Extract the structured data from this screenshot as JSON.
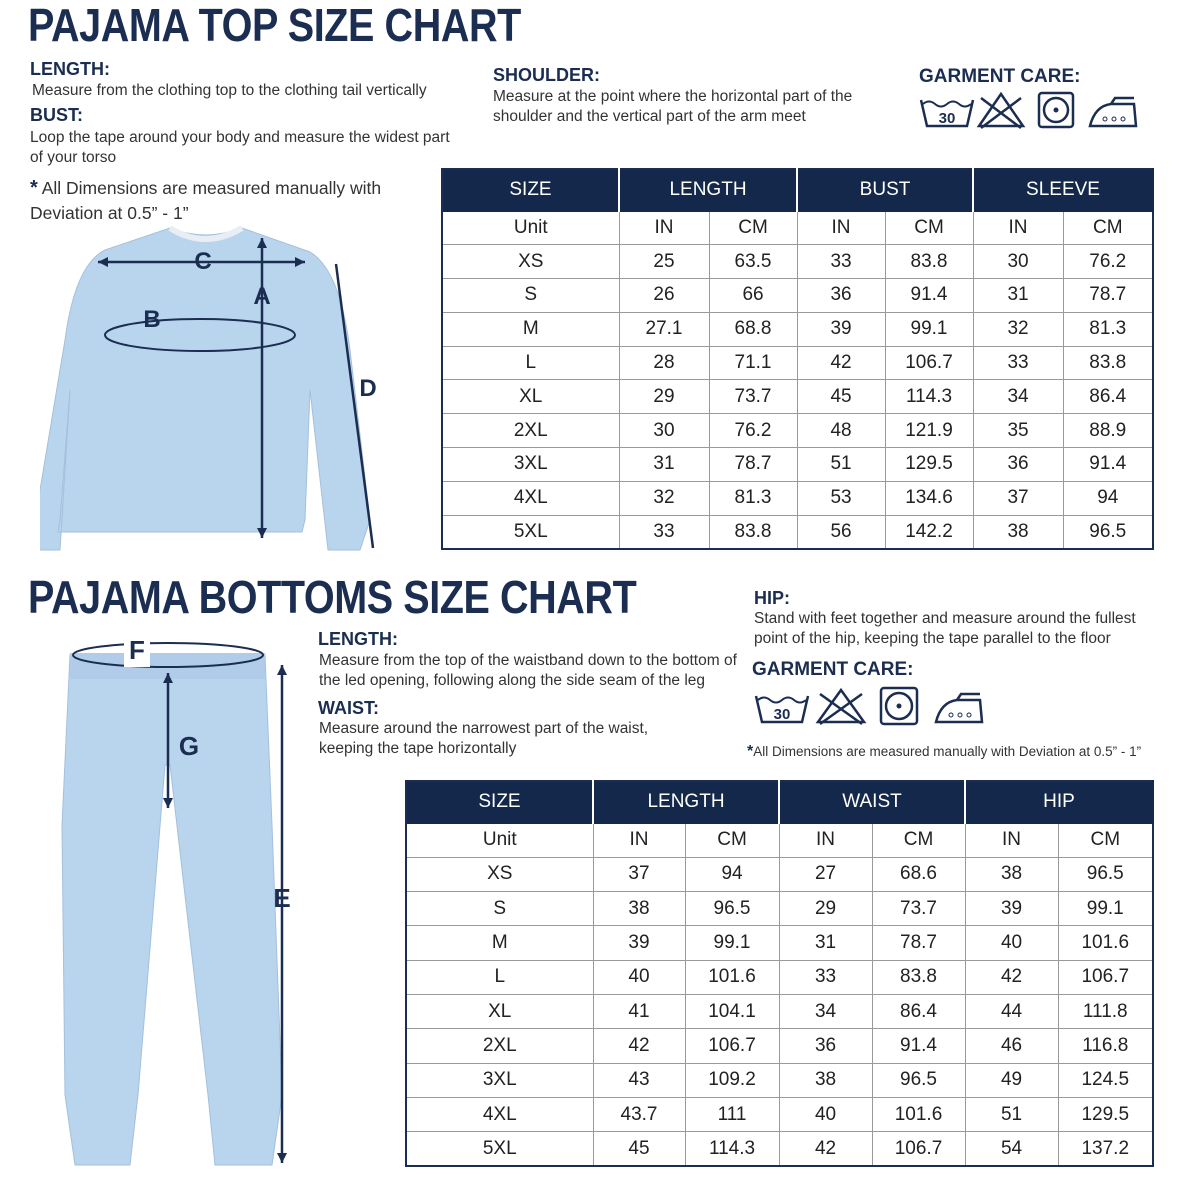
{
  "top": {
    "title": "PAJAMA TOP SIZE CHART",
    "length": {
      "label": "LENGTH:",
      "text": "Measure from the clothing top to the clothing tail vertically"
    },
    "bust": {
      "label": "BUST:",
      "text": "Loop the tape around your body and measure the widest part of your torso"
    },
    "shoulder": {
      "label": "SHOULDER:",
      "text": "Measure at the point where the horizontal part of the shoulder and the vertical part of the arm meet"
    },
    "disclaimer": {
      "mark": "*",
      "text": "All Dimensions are measured manually with Deviation at 0.5” - 1”"
    },
    "care": {
      "title": "GARMENT CARE:",
      "wash": "30"
    },
    "diagram": {
      "c": "C",
      "a": "A",
      "b": "B",
      "d": "D"
    },
    "table": {
      "groups": [
        "SIZE",
        "LENGTH",
        "BUST",
        "SLEEVE"
      ],
      "units": [
        "Unit",
        "IN",
        "CM",
        "IN",
        "CM",
        "IN",
        "CM"
      ],
      "rows": [
        [
          "XS",
          "25",
          "63.5",
          "33",
          "83.8",
          "30",
          "76.2"
        ],
        [
          "S",
          "26",
          "66",
          "36",
          "91.4",
          "31",
          "78.7"
        ],
        [
          "M",
          "27.1",
          "68.8",
          "39",
          "99.1",
          "32",
          "81.3"
        ],
        [
          "L",
          "28",
          "71.1",
          "42",
          "106.7",
          "33",
          "83.8"
        ],
        [
          "XL",
          "29",
          "73.7",
          "45",
          "114.3",
          "34",
          "86.4"
        ],
        [
          "2XL",
          "30",
          "76.2",
          "48",
          "121.9",
          "35",
          "88.9"
        ],
        [
          "3XL",
          "31",
          "78.7",
          "51",
          "129.5",
          "36",
          "91.4"
        ],
        [
          "4XL",
          "32",
          "81.3",
          "53",
          "134.6",
          "37",
          "94"
        ],
        [
          "5XL",
          "33",
          "83.8",
          "56",
          "142.2",
          "38",
          "96.5"
        ]
      ]
    }
  },
  "bottoms": {
    "title": "PAJAMA BOTTOMS SIZE CHART",
    "length": {
      "label": "LENGTH:",
      "text": "Measure from the top of the waistband down to the bottom of the led opening, following along the side seam of the leg"
    },
    "waist": {
      "label": "WAIST:",
      "text": "Measure around the narrowest part of the waist, keeping the tape horizontally"
    },
    "hip": {
      "label": "HIP:",
      "text": "Stand with feet together and measure around the fullest point of the hip, keeping the tape parallel to the floor"
    },
    "disclaimer": {
      "mark": "*",
      "text": "All Dimensions are measured manually with Deviation at 0.5” - 1”"
    },
    "care": {
      "title": "GARMENT CARE:",
      "wash": "30"
    },
    "diagram": {
      "f": "F",
      "g": "G",
      "e": "E"
    },
    "table": {
      "groups": [
        "SIZE",
        "LENGTH",
        "WAIST",
        "HIP"
      ],
      "units": [
        "Unit",
        "IN",
        "CM",
        "IN",
        "CM",
        "IN",
        "CM"
      ],
      "rows": [
        [
          "XS",
          "37",
          "94",
          "27",
          "68.6",
          "38",
          "96.5"
        ],
        [
          "S",
          "38",
          "96.5",
          "29",
          "73.7",
          "39",
          "99.1"
        ],
        [
          "M",
          "39",
          "99.1",
          "31",
          "78.7",
          "40",
          "101.6"
        ],
        [
          "L",
          "40",
          "101.6",
          "33",
          "83.8",
          "42",
          "106.7"
        ],
        [
          "XL",
          "41",
          "104.1",
          "34",
          "86.4",
          "44",
          "111.8"
        ],
        [
          "2XL",
          "42",
          "106.7",
          "36",
          "91.4",
          "46",
          "116.8"
        ],
        [
          "3XL",
          "43",
          "109.2",
          "38",
          "96.5",
          "49",
          "124.5"
        ],
        [
          "4XL",
          "43.7",
          "111",
          "40",
          "101.6",
          "51",
          "129.5"
        ],
        [
          "5XL",
          "45",
          "114.3",
          "42",
          "106.7",
          "54",
          "137.2"
        ]
      ]
    }
  }
}
